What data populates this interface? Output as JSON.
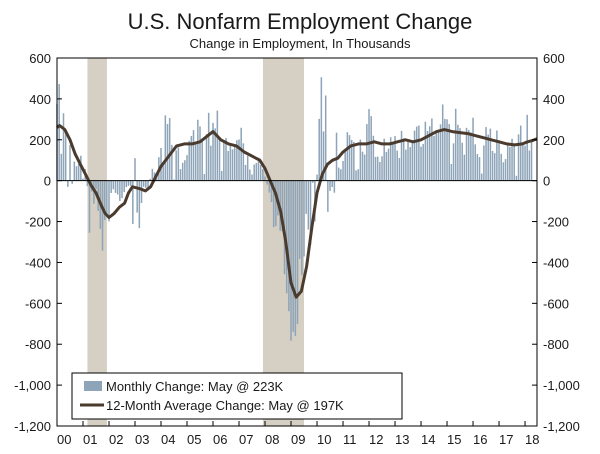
{
  "chart_data": {
    "type": "bar+line",
    "title": "U.S. Nonfarm Employment Change",
    "subtitle": "Change in Employment, In Thousands",
    "ylim": [
      -1200,
      600
    ],
    "yticks": [
      600,
      400,
      200,
      0,
      -200,
      -400,
      -600,
      -800,
      -1000,
      -1200
    ],
    "ytick_labels_left": [
      "600",
      "400",
      "200",
      "0",
      "-200",
      "-400",
      "-600",
      "-800",
      "-1,000",
      "-1,200"
    ],
    "ytick_labels_right": [
      "600",
      "400",
      "200",
      "0",
      "-200",
      "-400",
      "-600",
      "-800",
      "-1,000",
      "-1,200"
    ],
    "xlim": [
      2000.0,
      2018.46
    ],
    "xtick_years": [
      2000,
      2001,
      2002,
      2003,
      2004,
      2005,
      2006,
      2007,
      2008,
      2009,
      2010,
      2011,
      2012,
      2013,
      2014,
      2015,
      2016,
      2017,
      2018
    ],
    "xtick_labels": [
      "00",
      "01",
      "02",
      "03",
      "04",
      "05",
      "06",
      "07",
      "08",
      "09",
      "10",
      "11",
      "12",
      "13",
      "14",
      "15",
      "16",
      "17",
      "18"
    ],
    "recessions": [
      [
        2001.17,
        2001.92
      ],
      [
        2007.92,
        2009.5
      ]
    ],
    "colors": {
      "bars": "#8ea4b8",
      "line": "#4a3b2e",
      "recession": "#d6cfc4"
    },
    "monthly_anchors": [
      [
        2000.0,
        350
      ],
      [
        2000.08,
        460
      ],
      [
        2000.17,
        180
      ],
      [
        2000.25,
        300
      ],
      [
        2000.33,
        220
      ],
      [
        2000.42,
        -40
      ],
      [
        2000.5,
        160
      ],
      [
        2000.58,
        -20
      ],
      [
        2000.67,
        100
      ],
      [
        2000.75,
        60
      ],
      [
        2000.83,
        120
      ],
      [
        2000.92,
        90
      ],
      [
        2001.0,
        10
      ],
      [
        2001.08,
        60
      ],
      [
        2001.17,
        -30
      ],
      [
        2001.25,
        -280
      ],
      [
        2001.33,
        -50
      ],
      [
        2001.42,
        -130
      ],
      [
        2001.5,
        -40
      ],
      [
        2001.58,
        -150
      ],
      [
        2001.67,
        -250
      ],
      [
        2001.75,
        -300
      ],
      [
        2001.83,
        -230
      ],
      [
        2001.92,
        -180
      ],
      [
        2002.0,
        -140
      ],
      [
        2002.17,
        -40
      ],
      [
        2002.33,
        -80
      ],
      [
        2002.5,
        -100
      ],
      [
        2002.67,
        -30
      ],
      [
        2002.83,
        -20
      ],
      [
        2002.92,
        -160
      ],
      [
        2003.0,
        80
      ],
      [
        2003.08,
        -170
      ],
      [
        2003.17,
        -210
      ],
      [
        2003.33,
        -30
      ],
      [
        2003.5,
        -40
      ],
      [
        2003.67,
        60
      ],
      [
        2003.83,
        20
      ],
      [
        2004.0,
        150
      ],
      [
        2004.08,
        80
      ],
      [
        2004.17,
        320
      ],
      [
        2004.25,
        300
      ],
      [
        2004.33,
        280
      ],
      [
        2004.5,
        60
      ],
      [
        2004.67,
        150
      ],
      [
        2004.83,
        60
      ],
      [
        2005.0,
        130
      ],
      [
        2005.17,
        250
      ],
      [
        2005.33,
        170
      ],
      [
        2005.42,
        360
      ],
      [
        2005.5,
        220
      ],
      [
        2005.58,
        190
      ],
      [
        2005.67,
        70
      ],
      [
        2005.83,
        340
      ],
      [
        2005.92,
        160
      ],
      [
        2006.0,
        280
      ],
      [
        2006.17,
        300
      ],
      [
        2006.33,
        100
      ],
      [
        2006.5,
        200
      ],
      [
        2006.67,
        160
      ],
      [
        2006.83,
        160
      ],
      [
        2006.92,
        200
      ],
      [
        2007.0,
        240
      ],
      [
        2007.17,
        180
      ],
      [
        2007.33,
        80
      ],
      [
        2007.5,
        30
      ],
      [
        2007.67,
        100
      ],
      [
        2007.83,
        80
      ],
      [
        2007.92,
        100
      ],
      [
        2008.0,
        20
      ],
      [
        2008.17,
        -60
      ],
      [
        2008.33,
        -230
      ],
      [
        2008.5,
        -180
      ],
      [
        2008.67,
        -280
      ],
      [
        2008.75,
        -450
      ],
      [
        2008.83,
        -500
      ],
      [
        2008.92,
        -700
      ],
      [
        2009.0,
        -780
      ],
      [
        2009.08,
        -690
      ],
      [
        2009.17,
        -800
      ],
      [
        2009.25,
        -700
      ],
      [
        2009.33,
        -370
      ],
      [
        2009.42,
        -470
      ],
      [
        2009.5,
        -350
      ],
      [
        2009.58,
        -200
      ],
      [
        2009.67,
        -230
      ],
      [
        2009.75,
        -270
      ],
      [
        2009.83,
        -60
      ],
      [
        2009.92,
        -200
      ],
      [
        2010.0,
        30
      ],
      [
        2010.17,
        520
      ],
      [
        2010.25,
        240
      ],
      [
        2010.33,
        440
      ],
      [
        2010.42,
        -150
      ],
      [
        2010.5,
        -50
      ],
      [
        2010.58,
        -30
      ],
      [
        2010.67,
        -60
      ],
      [
        2010.75,
        180
      ],
      [
        2010.83,
        70
      ],
      [
        2010.92,
        90
      ],
      [
        2011.0,
        70
      ],
      [
        2011.17,
        230
      ],
      [
        2011.33,
        230
      ],
      [
        2011.5,
        50
      ],
      [
        2011.67,
        150
      ],
      [
        2011.83,
        150
      ],
      [
        2012.0,
        360
      ],
      [
        2012.17,
        230
      ],
      [
        2012.33,
        60
      ],
      [
        2012.5,
        160
      ],
      [
        2012.67,
        150
      ],
      [
        2012.83,
        200
      ],
      [
        2013.0,
        190
      ],
      [
        2013.17,
        140
      ],
      [
        2013.33,
        230
      ],
      [
        2013.5,
        150
      ],
      [
        2013.67,
        200
      ],
      [
        2013.83,
        280
      ],
      [
        2014.0,
        190
      ],
      [
        2014.17,
        230
      ],
      [
        2014.33,
        300
      ],
      [
        2014.5,
        230
      ],
      [
        2014.67,
        250
      ],
      [
        2014.83,
        330
      ],
      [
        2015.0,
        330
      ],
      [
        2015.17,
        100
      ],
      [
        2015.33,
        320
      ],
      [
        2015.5,
        250
      ],
      [
        2015.67,
        140
      ],
      [
        2015.83,
        280
      ],
      [
        2016.0,
        250
      ],
      [
        2016.17,
        150
      ],
      [
        2016.33,
        30
      ],
      [
        2016.5,
        280
      ],
      [
        2016.67,
        200
      ],
      [
        2016.83,
        160
      ],
      [
        2017.0,
        220
      ],
      [
        2017.17,
        70
      ],
      [
        2017.33,
        160
      ],
      [
        2017.5,
        220
      ],
      [
        2017.67,
        20
      ],
      [
        2017.75,
        250
      ],
      [
        2017.83,
        220
      ],
      [
        2018.0,
        180
      ],
      [
        2018.08,
        320
      ],
      [
        2018.17,
        150
      ],
      [
        2018.25,
        160
      ],
      [
        2018.33,
        223
      ]
    ],
    "average_anchors": [
      [
        2000.0,
        260
      ],
      [
        2000.1,
        270
      ],
      [
        2000.3,
        250
      ],
      [
        2000.5,
        200
      ],
      [
        2000.7,
        130
      ],
      [
        2000.9,
        80
      ],
      [
        2001.1,
        30
      ],
      [
        2001.3,
        -20
      ],
      [
        2001.5,
        -60
      ],
      [
        2001.7,
        -120
      ],
      [
        2001.85,
        -160
      ],
      [
        2002.0,
        -180
      ],
      [
        2002.2,
        -160
      ],
      [
        2002.4,
        -130
      ],
      [
        2002.6,
        -110
      ],
      [
        2002.75,
        -60
      ],
      [
        2002.9,
        -30
      ],
      [
        2003.2,
        -40
      ],
      [
        2003.4,
        -50
      ],
      [
        2003.6,
        -30
      ],
      [
        2003.8,
        20
      ],
      [
        2004.0,
        70
      ],
      [
        2004.3,
        120
      ],
      [
        2004.6,
        170
      ],
      [
        2004.9,
        180
      ],
      [
        2005.2,
        180
      ],
      [
        2005.5,
        190
      ],
      [
        2005.8,
        220
      ],
      [
        2006.0,
        240
      ],
      [
        2006.3,
        200
      ],
      [
        2006.6,
        180
      ],
      [
        2006.9,
        170
      ],
      [
        2007.2,
        140
      ],
      [
        2007.5,
        120
      ],
      [
        2007.8,
        100
      ],
      [
        2008.0,
        60
      ],
      [
        2008.2,
        0
      ],
      [
        2008.4,
        -60
      ],
      [
        2008.6,
        -150
      ],
      [
        2008.8,
        -300
      ],
      [
        2009.0,
        -500
      ],
      [
        2009.2,
        -570
      ],
      [
        2009.4,
        -540
      ],
      [
        2009.6,
        -420
      ],
      [
        2009.8,
        -230
      ],
      [
        2010.0,
        -60
      ],
      [
        2010.2,
        30
      ],
      [
        2010.4,
        80
      ],
      [
        2010.6,
        100
      ],
      [
        2010.8,
        110
      ],
      [
        2011.0,
        140
      ],
      [
        2011.3,
        170
      ],
      [
        2011.6,
        180
      ],
      [
        2011.9,
        180
      ],
      [
        2012.2,
        190
      ],
      [
        2012.5,
        180
      ],
      [
        2012.8,
        180
      ],
      [
        2013.1,
        190
      ],
      [
        2013.4,
        200
      ],
      [
        2013.7,
        190
      ],
      [
        2014.0,
        200
      ],
      [
        2014.3,
        220
      ],
      [
        2014.6,
        240
      ],
      [
        2014.9,
        250
      ],
      [
        2015.2,
        240
      ],
      [
        2015.5,
        235
      ],
      [
        2015.8,
        230
      ],
      [
        2016.1,
        220
      ],
      [
        2016.4,
        210
      ],
      [
        2016.7,
        200
      ],
      [
        2017.0,
        190
      ],
      [
        2017.3,
        180
      ],
      [
        2017.6,
        175
      ],
      [
        2017.9,
        180
      ],
      [
        2018.1,
        190
      ],
      [
        2018.3,
        197
      ],
      [
        2018.46,
        205
      ]
    ],
    "legend": [
      {
        "key": "bars",
        "label": "Monthly Change: May @ 223K"
      },
      {
        "key": "line",
        "label": "12-Month Average Change: May @ 197K"
      }
    ]
  }
}
